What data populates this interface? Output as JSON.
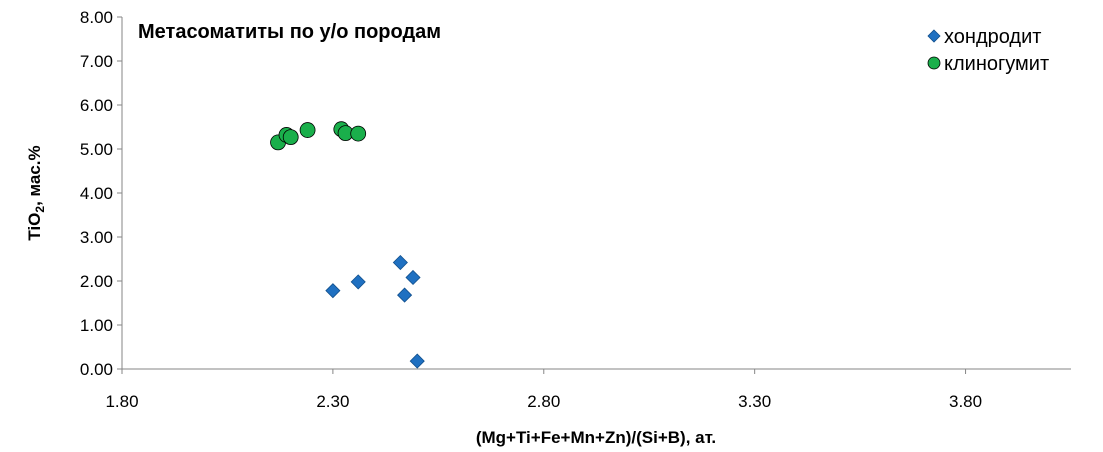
{
  "chart_data": {
    "type": "scatter",
    "title": "Метасоматиты по у/о породам",
    "xlabel": "(Mg+Ti+Fe+Mn+Zn)/(Si+B),  ат.",
    "ylabel_main": "TiO",
    "ylabel_sub": "2",
    "ylabel_rest": ", мас.%",
    "xlim": [
      1.8,
      4.05
    ],
    "ylim": [
      0,
      8
    ],
    "xticks": [
      "1.80",
      "2.30",
      "2.80",
      "3.30",
      "3.80"
    ],
    "yticks": [
      "0.00",
      "1.00",
      "2.00",
      "3.00",
      "4.00",
      "5.00",
      "6.00",
      "7.00",
      "8.00"
    ],
    "grid": false,
    "legend_position": "top-right",
    "series": [
      {
        "name": "хондродит",
        "marker": "diamond",
        "color": "#1F70C1",
        "points": [
          {
            "x": 2.3,
            "y": 1.78
          },
          {
            "x": 2.36,
            "y": 1.98
          },
          {
            "x": 2.46,
            "y": 2.42
          },
          {
            "x": 2.47,
            "y": 1.68
          },
          {
            "x": 2.49,
            "y": 2.08
          },
          {
            "x": 2.5,
            "y": 0.18
          }
        ]
      },
      {
        "name": "клиногумит",
        "marker": "circle",
        "color": "#1AAF4B",
        "points": [
          {
            "x": 2.17,
            "y": 5.15
          },
          {
            "x": 2.19,
            "y": 5.32
          },
          {
            "x": 2.2,
            "y": 5.27
          },
          {
            "x": 2.24,
            "y": 5.43
          },
          {
            "x": 2.32,
            "y": 5.45
          },
          {
            "x": 2.33,
            "y": 5.36
          },
          {
            "x": 2.36,
            "y": 5.35
          }
        ]
      }
    ]
  }
}
